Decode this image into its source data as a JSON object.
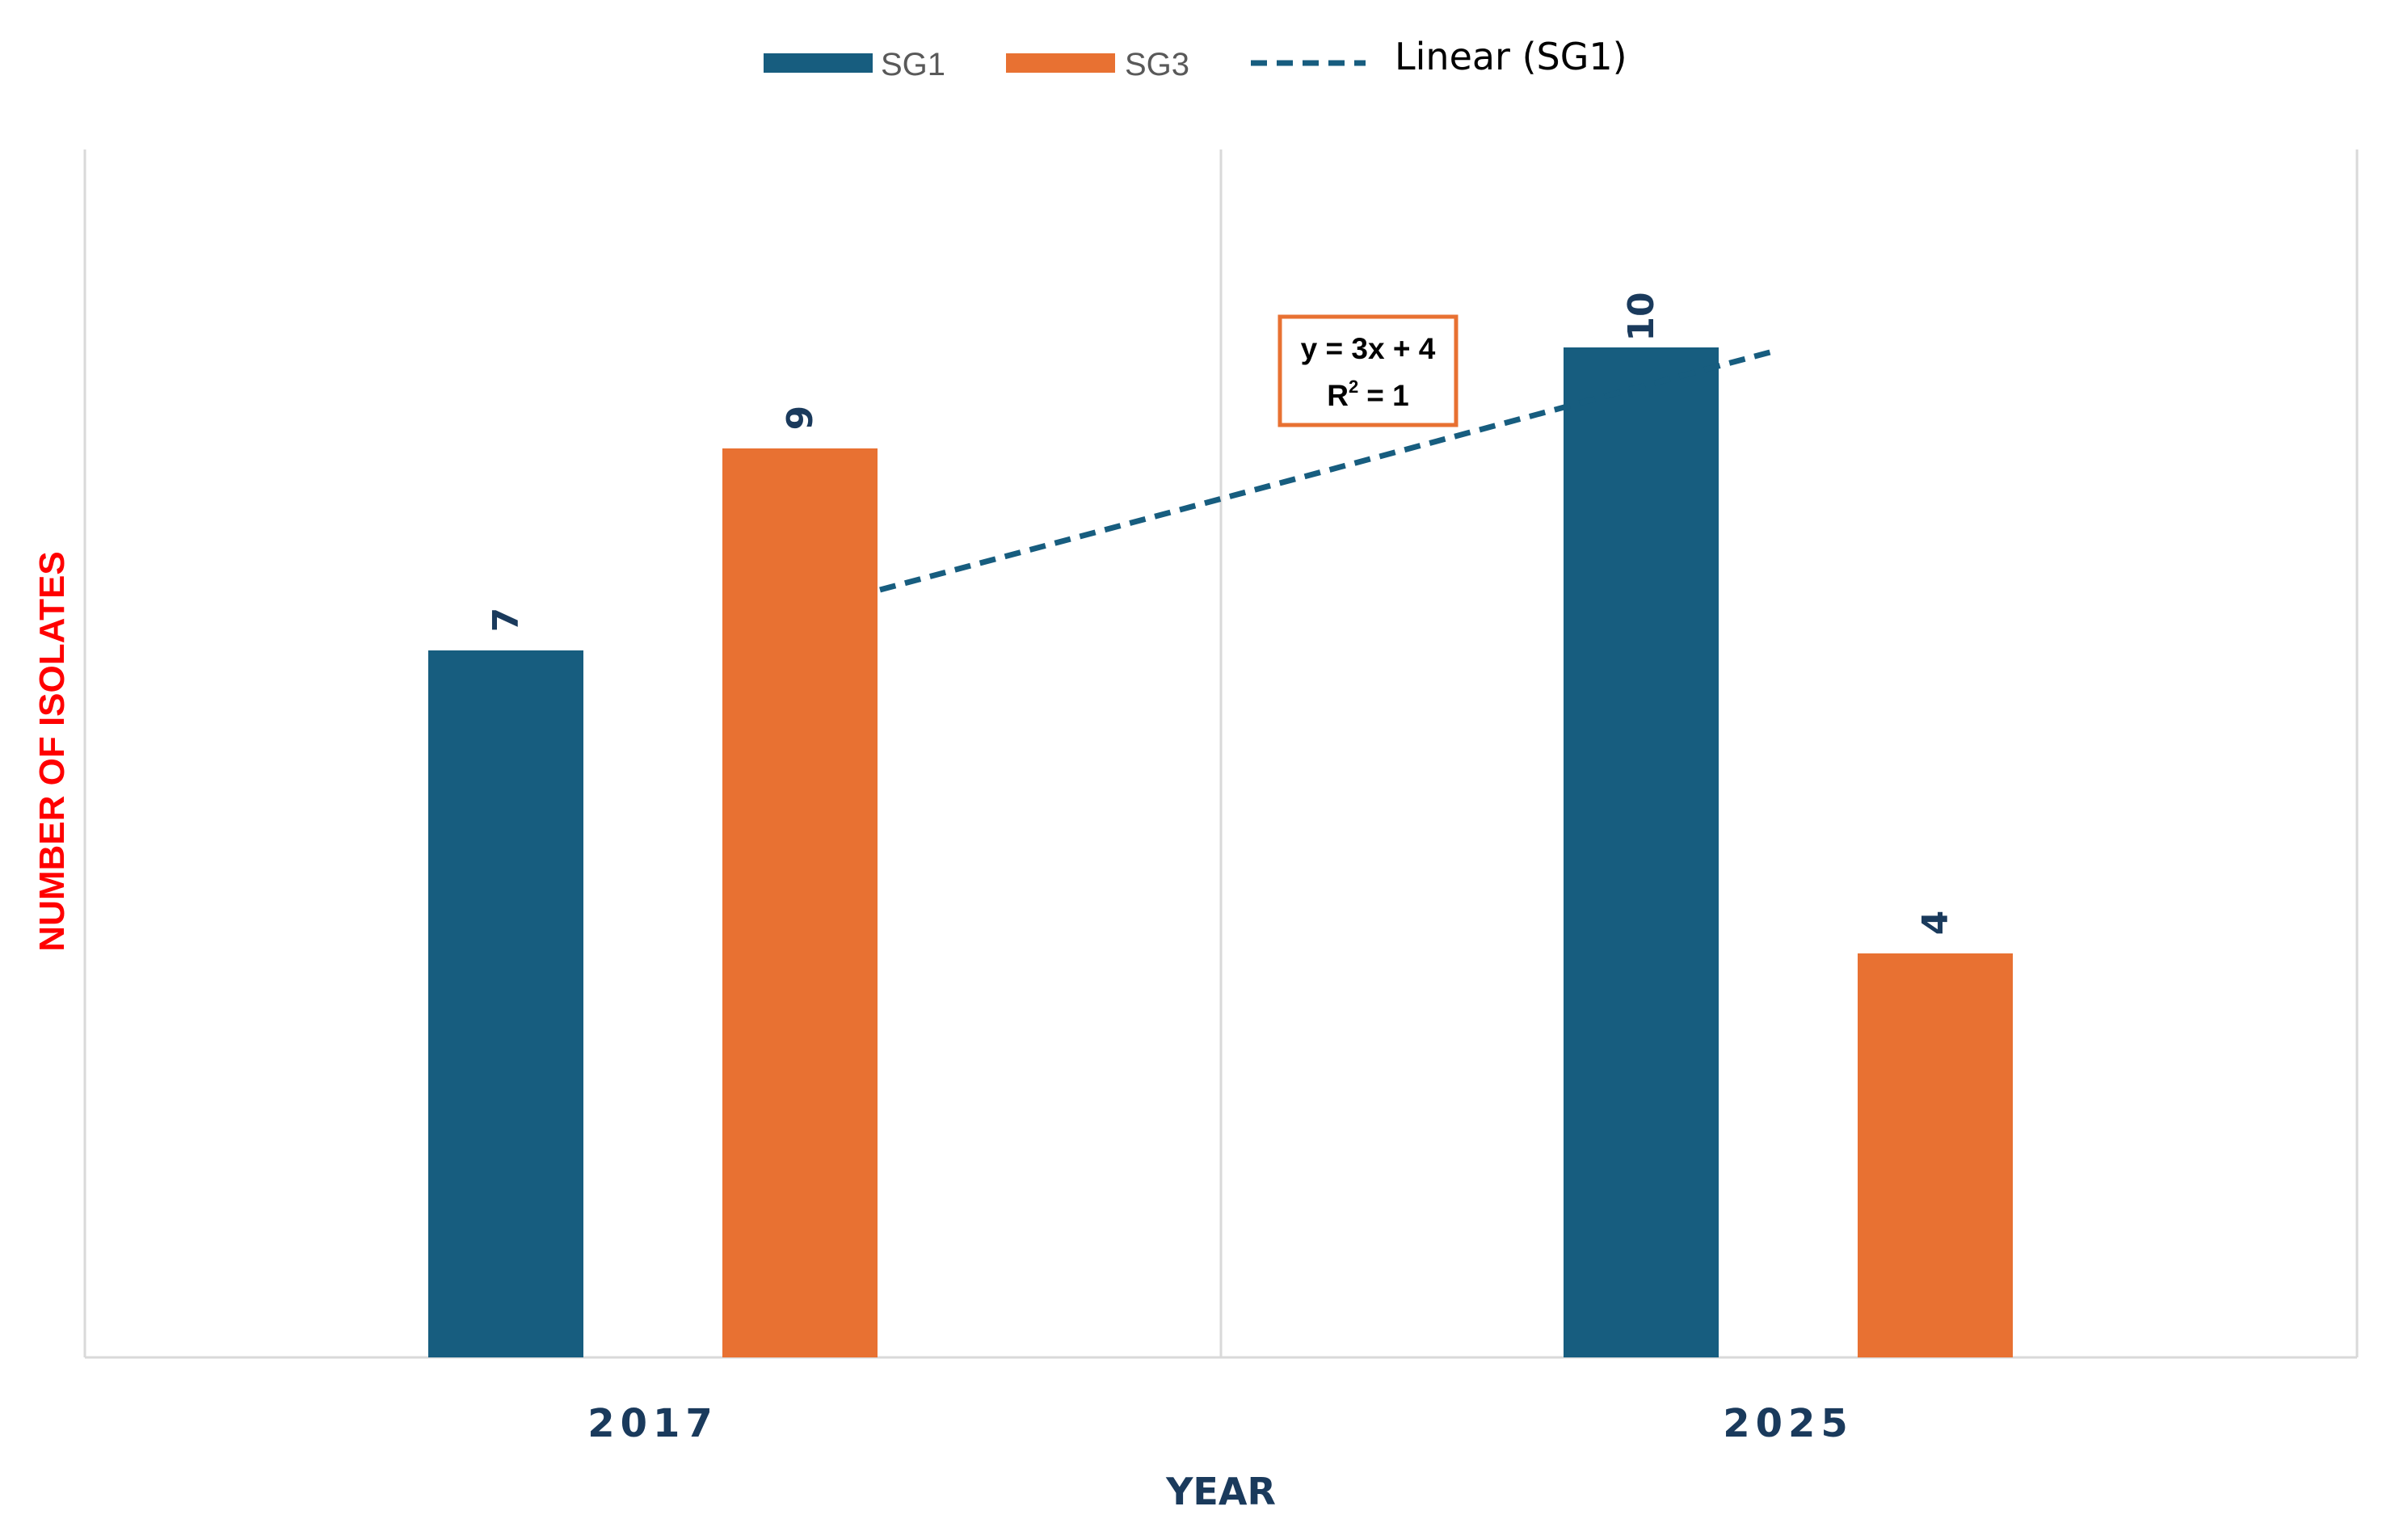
{
  "chart_data": {
    "type": "bar",
    "categories": [
      "2017",
      "2025"
    ],
    "series": [
      {
        "name": "SG1",
        "values": [
          7,
          10
        ],
        "color": "#175d7f"
      },
      {
        "name": "SG3",
        "values": [
          9,
          4
        ],
        "color": "#e87132"
      }
    ],
    "trendline": {
      "name": "Linear (SG1)",
      "series": "SG1",
      "type": "linear",
      "equation": "y = 3x + 4",
      "r_squared_label": "R",
      "r_squared_exp": "2",
      "r_squared_value": "= 1",
      "color": "#175d7f",
      "box_color": "#e87132"
    },
    "xlabel": "YEAR",
    "ylabel": "NUMBER OF ISOLATES",
    "ylim": [
      0,
      13.5
    ],
    "legend_position": "top-center",
    "grid": "vertical-category-separators"
  }
}
